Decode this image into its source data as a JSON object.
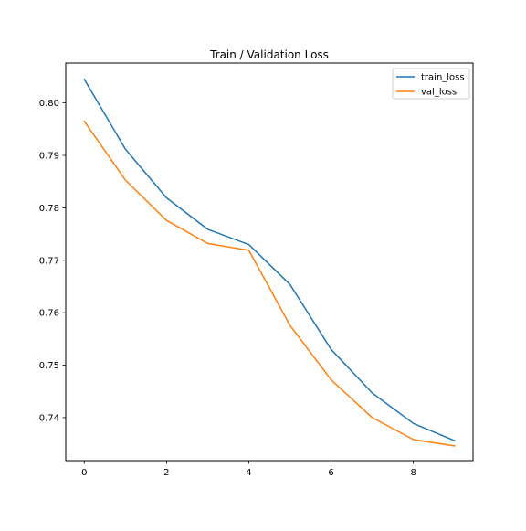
{
  "chart_data": {
    "type": "line",
    "title": "Train / Validation Loss",
    "xlabel": "",
    "ylabel": "",
    "x": [
      0,
      1,
      2,
      3,
      4,
      5,
      6,
      7,
      8,
      9
    ],
    "series": [
      {
        "name": "train_loss",
        "color": "#1f77b4",
        "values": [
          0.8045,
          0.7912,
          0.7819,
          0.7759,
          0.773,
          0.7654,
          0.753,
          0.7447,
          0.7389,
          0.7356
        ]
      },
      {
        "name": "val_loss",
        "color": "#ff7f0e",
        "values": [
          0.7965,
          0.7853,
          0.7776,
          0.7732,
          0.7719,
          0.7576,
          0.7472,
          0.74,
          0.7358,
          0.7346
        ]
      }
    ],
    "xlim": [
      -0.45,
      9.45
    ],
    "ylim": [
      0.7318,
      0.8076
    ],
    "x_ticks": [
      0,
      2,
      4,
      6,
      8
    ],
    "x_tick_labels": [
      "0",
      "2",
      "4",
      "6",
      "8"
    ],
    "y_ticks": [
      0.74,
      0.75,
      0.76,
      0.77,
      0.78,
      0.79,
      0.8
    ],
    "y_tick_labels": [
      "0.74",
      "0.75",
      "0.76",
      "0.77",
      "0.78",
      "0.79",
      "0.80"
    ],
    "grid": false,
    "legend_position": "top-right"
  }
}
